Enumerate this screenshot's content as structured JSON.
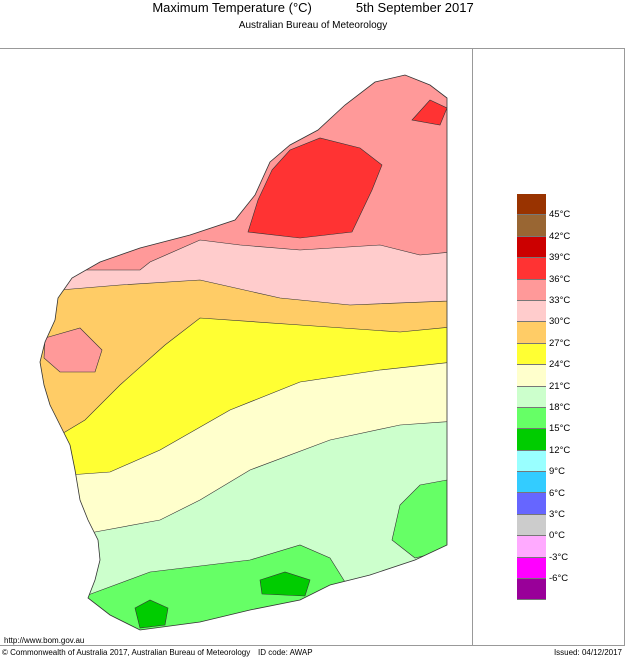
{
  "header": {
    "title": "Maximum Temperature (°C)",
    "date": "5th September 2017",
    "subtitle": "Australian Bureau of Meteorology"
  },
  "footer": {
    "url": "http://www.bom.gov.au",
    "copyright": "© Commonwealth of Australia 2017, Australian Bureau of Meteorology",
    "id_code": "ID code: AWAP",
    "issued": "Issued: 04/12/2017"
  },
  "legend": {
    "colors": [
      "#993300",
      "#996633",
      "#cc0000",
      "#ff3333",
      "#ff9999",
      "#ffcccc",
      "#ffcc66",
      "#ffff33",
      "#ffffcc",
      "#ccffcc",
      "#66ff66",
      "#00cc00",
      "#99ffff",
      "#33ccff",
      "#6666ff",
      "#cccccc",
      "#ffaaff",
      "#ff00ff",
      "#990099"
    ],
    "labels": [
      "45°C",
      "42°C",
      "39°C",
      "36°C",
      "33°C",
      "30°C",
      "27°C",
      "24°C",
      "21°C",
      "18°C",
      "15°C",
      "12°C",
      "9°C",
      "6°C",
      "3°C",
      "0°C",
      "-3°C",
      "-6°C"
    ]
  }
}
